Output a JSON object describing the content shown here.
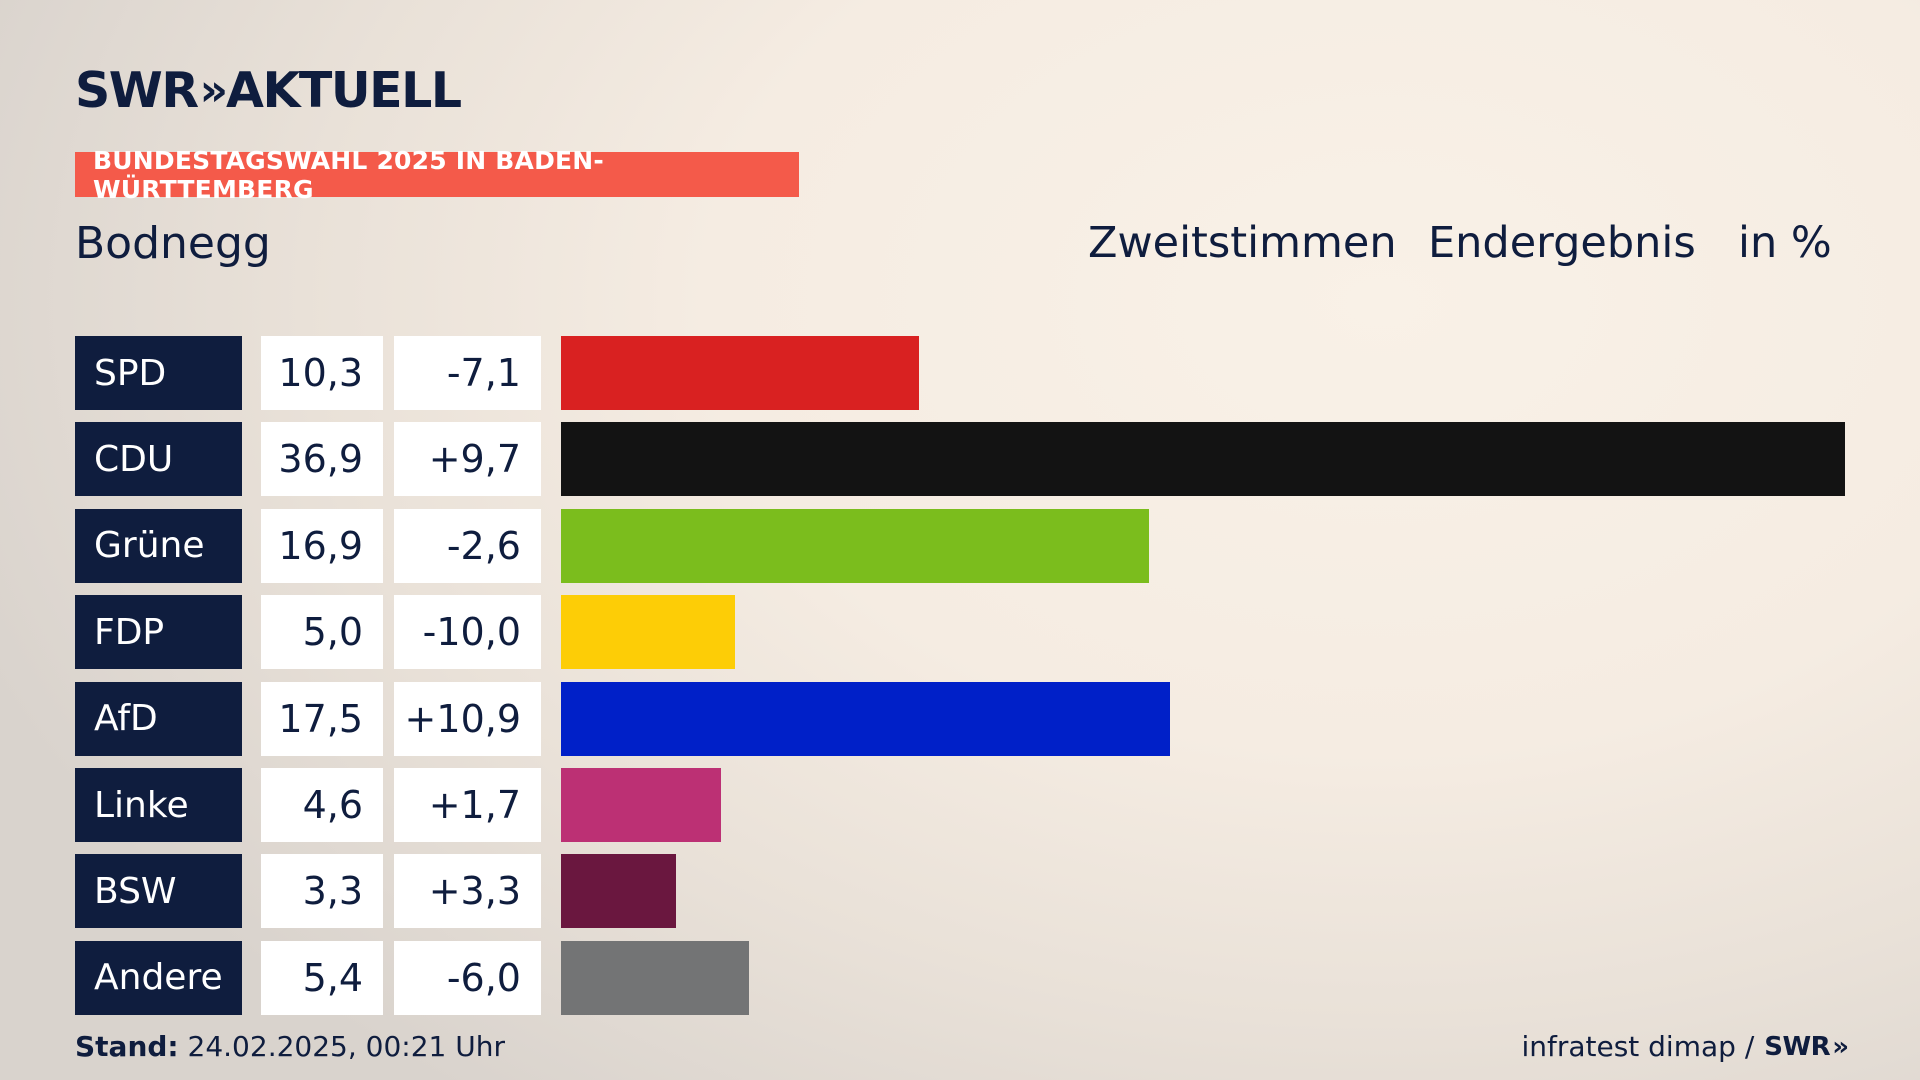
{
  "brand": {
    "logo_swr": "SWR",
    "logo_chevrons": "»",
    "logo_aktuell": "AKTUELL"
  },
  "banner": "BUNDESTAGSWAHL 2025 IN BADEN-WÜRTTEMBERG",
  "region": "Bodnegg",
  "header": {
    "vote_type": "Zweitstimmen",
    "status": "Endergebnis",
    "unit": "in %"
  },
  "chart_data": {
    "type": "bar",
    "orientation": "horizontal",
    "categories": [
      "SPD",
      "CDU",
      "Grüne",
      "FDP",
      "AfD",
      "Linke",
      "BSW",
      "Andere"
    ],
    "values": [
      10.3,
      36.9,
      16.9,
      5.0,
      17.5,
      4.6,
      3.3,
      5.4
    ],
    "value_labels": [
      "10,3",
      "36,9",
      "16,9",
      "5,0",
      "17,5",
      "4,6",
      "3,3",
      "5,4"
    ],
    "changes": [
      -7.1,
      9.7,
      -2.6,
      -10.0,
      10.9,
      1.7,
      3.3,
      -6.0
    ],
    "change_labels": [
      "-7,1",
      "+9,7",
      "-2,6",
      "-10,0",
      "+10,9",
      "+1,7",
      "+3,3",
      "-6,0"
    ],
    "colors": [
      "#d92121",
      "#131313",
      "#7bbd1d",
      "#fdcd06",
      "#0020c8",
      "#bc3074",
      "#6a173f",
      "#737475"
    ],
    "xlim": [
      0,
      36.9
    ],
    "grid": false,
    "legend": "none"
  },
  "footer": {
    "stand_label": "Stand:",
    "stand_value": "24.02.2025, 00:21 Uhr",
    "source": "infratest dimap /",
    "source_logo": "SWR",
    "source_logo_chevrons": "»"
  }
}
